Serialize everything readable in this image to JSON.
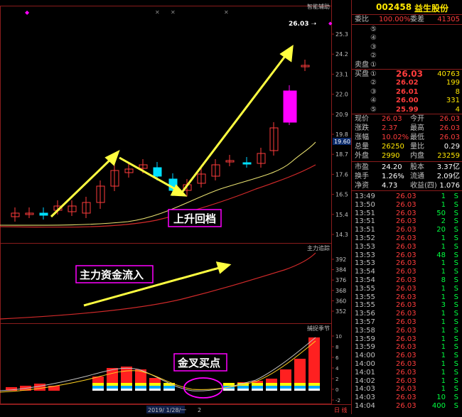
{
  "header": {
    "code": "002458",
    "name": "益生股份"
  },
  "weibi": {
    "label1": "委比",
    "pct": "100.00%",
    "label2": "委差",
    "value": "41305"
  },
  "sell": {
    "label": "卖盘",
    "levels": [
      "⑤",
      "④",
      "③",
      "②",
      "①"
    ]
  },
  "buy": {
    "label": "买盘",
    "rows": [
      {
        "n": "①",
        "price": "26.03",
        "vol": "40763"
      },
      {
        "n": "②",
        "price": "26.02",
        "vol": "199"
      },
      {
        "n": "③",
        "price": "26.01",
        "vol": "8"
      },
      {
        "n": "④",
        "price": "26.00",
        "vol": "331"
      },
      {
        "n": "⑤",
        "price": "25.99",
        "vol": "4"
      }
    ]
  },
  "quote": [
    {
      "l1": "现价",
      "v1": "26.03",
      "l2": "今开",
      "v2": "26.03"
    },
    {
      "l1": "涨跌",
      "v1": "2.37",
      "l2": "最高",
      "v2": "26.03"
    },
    {
      "l1": "涨幅",
      "v1": "10.02%",
      "l2": "最低",
      "v2": "26.03"
    },
    {
      "l1": "总量",
      "v1": "26250",
      "l2": "量比",
      "v2": "0.29"
    },
    {
      "l1": "外盘",
      "v1": "2990",
      "l2": "内盘",
      "v2": "23259"
    }
  ],
  "fund": [
    {
      "l1": "市盈",
      "v1": "24.20",
      "l2": "股本",
      "v2": "3.37亿"
    },
    {
      "l1": "换手",
      "v1": "1.26%",
      "l2": "流通",
      "v2": "2.09亿"
    },
    {
      "l1": "净资",
      "v1": "4.73",
      "l2": "收益(四)",
      "v2": "1.076"
    }
  ],
  "ticks": [
    {
      "t": "13:49",
      "p": "26.03",
      "v": "1",
      "d": "S"
    },
    {
      "t": "13:50",
      "p": "26.03",
      "v": "1",
      "d": "S"
    },
    {
      "t": "13:51",
      "p": "26.03",
      "v": "50",
      "d": "S"
    },
    {
      "t": "13:51",
      "p": "26.03",
      "v": "2",
      "d": "S"
    },
    {
      "t": "13:51",
      "p": "26.03",
      "v": "20",
      "d": "S"
    },
    {
      "t": "13:52",
      "p": "26.03",
      "v": "1",
      "d": "S"
    },
    {
      "t": "13:53",
      "p": "26.03",
      "v": "1",
      "d": "S"
    },
    {
      "t": "13:53",
      "p": "26.03",
      "v": "48",
      "d": "S"
    },
    {
      "t": "13:53",
      "p": "26.03",
      "v": "1",
      "d": "S"
    },
    {
      "t": "13:54",
      "p": "26.03",
      "v": "1",
      "d": "S"
    },
    {
      "t": "13:54",
      "p": "26.03",
      "v": "8",
      "d": "S"
    },
    {
      "t": "13:55",
      "p": "26.03",
      "v": "1",
      "d": "S"
    },
    {
      "t": "13:55",
      "p": "26.03",
      "v": "1",
      "d": "S"
    },
    {
      "t": "13:55",
      "p": "26.03",
      "v": "3",
      "d": "S"
    },
    {
      "t": "13:56",
      "p": "26.03",
      "v": "1",
      "d": "S"
    },
    {
      "t": "13:57",
      "p": "26.03",
      "v": "1",
      "d": "S"
    },
    {
      "t": "13:58",
      "p": "26.03",
      "v": "1",
      "d": "S"
    },
    {
      "t": "13:59",
      "p": "26.03",
      "v": "1",
      "d": "S"
    },
    {
      "t": "13:59",
      "p": "26.03",
      "v": "1",
      "d": "S"
    },
    {
      "t": "14:00",
      "p": "26.03",
      "v": "1",
      "d": "S"
    },
    {
      "t": "14:00",
      "p": "26.03",
      "v": "1",
      "d": "S"
    },
    {
      "t": "14:01",
      "p": "26.03",
      "v": "1",
      "d": "S"
    },
    {
      "t": "14:02",
      "p": "26.03",
      "v": "1",
      "d": "S"
    },
    {
      "t": "14:03",
      "p": "26.03",
      "v": "1",
      "d": "S"
    },
    {
      "t": "14:03",
      "p": "26.03",
      "v": "10",
      "d": "S"
    },
    {
      "t": "14:04",
      "p": "26.03",
      "v": "400",
      "d": "S"
    }
  ],
  "main_chart": {
    "indicator": "智能辅助",
    "price_marker": "26.03 ➝",
    "current_price_tag": "19.60",
    "annotation": "上升回档",
    "yaxis": [
      "25.3",
      "24.2",
      "23.1",
      "22.0",
      "20.9",
      "19.8",
      "18.7",
      "17.6",
      "16.5",
      "15.4",
      "14.3"
    ]
  },
  "mid_chart": {
    "indicator": "主力追踪",
    "annotation": "主力资金流入",
    "yaxis": [
      "392",
      "384",
      "376",
      "368",
      "360",
      "352"
    ]
  },
  "bottom_chart": {
    "indicator": "捕捉季节",
    "annotation": "金叉买点",
    "yaxis": [
      "10",
      "8",
      "6",
      "4",
      "2",
      "0",
      "-2"
    ]
  },
  "statusbar": {
    "date": "2019/ 1/28/一",
    "page": "2",
    "tab": "日 线"
  },
  "colors": {
    "up": "#ff3c3c",
    "down": "#00ff40",
    "accent": "#ffe700",
    "magenta": "#ff00ff",
    "border": "#8a1c1c"
  }
}
